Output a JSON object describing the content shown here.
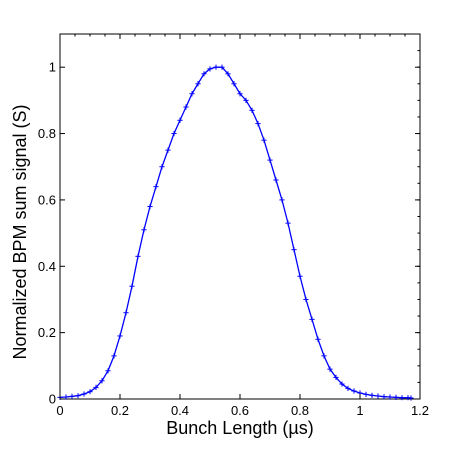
{
  "chart_data": {
    "type": "line",
    "title": "",
    "xlabel": "Bunch Length (µs)",
    "ylabel": "Normalized BPM sum signal (S)",
    "xlim": [
      0,
      1.2
    ],
    "ylim": [
      0,
      1.1
    ],
    "x_ticks": [
      0,
      0.2,
      0.4,
      0.6,
      0.8,
      1.0,
      1.2
    ],
    "x_tick_labels": [
      "0",
      "0.2",
      "0.4",
      "0.6",
      "0.8",
      "1",
      "1.2"
    ],
    "y_ticks": [
      0,
      0.2,
      0.4,
      0.6,
      0.8,
      1.0
    ],
    "y_tick_labels": [
      "0",
      "0.2",
      "0.4",
      "0.6",
      "0.8",
      "1"
    ],
    "grid": false,
    "legend": "none",
    "marker": "plus",
    "series": [
      {
        "color": "#0000ff",
        "x": [
          0.0,
          0.02,
          0.04,
          0.06,
          0.08,
          0.1,
          0.12,
          0.14,
          0.16,
          0.18,
          0.2,
          0.22,
          0.24,
          0.26,
          0.28,
          0.3,
          0.32,
          0.34,
          0.36,
          0.38,
          0.4,
          0.42,
          0.44,
          0.46,
          0.48,
          0.5,
          0.52,
          0.54,
          0.56,
          0.58,
          0.6,
          0.62,
          0.64,
          0.66,
          0.68,
          0.7,
          0.72,
          0.74,
          0.76,
          0.78,
          0.8,
          0.82,
          0.84,
          0.86,
          0.88,
          0.9,
          0.92,
          0.94,
          0.96,
          0.98,
          1.0,
          1.02,
          1.04,
          1.06,
          1.08,
          1.1,
          1.12,
          1.14,
          1.16,
          1.17
        ],
        "y": [
          0.005,
          0.006,
          0.008,
          0.01,
          0.015,
          0.022,
          0.035,
          0.055,
          0.085,
          0.13,
          0.19,
          0.26,
          0.34,
          0.43,
          0.51,
          0.58,
          0.64,
          0.7,
          0.75,
          0.8,
          0.84,
          0.88,
          0.92,
          0.95,
          0.98,
          0.995,
          1.0,
          1.0,
          0.98,
          0.95,
          0.92,
          0.9,
          0.87,
          0.83,
          0.78,
          0.72,
          0.66,
          0.6,
          0.53,
          0.45,
          0.37,
          0.3,
          0.24,
          0.18,
          0.13,
          0.09,
          0.065,
          0.045,
          0.032,
          0.024,
          0.018,
          0.014,
          0.011,
          0.009,
          0.007,
          0.006,
          0.005,
          0.004,
          0.004,
          0.003
        ]
      }
    ]
  }
}
